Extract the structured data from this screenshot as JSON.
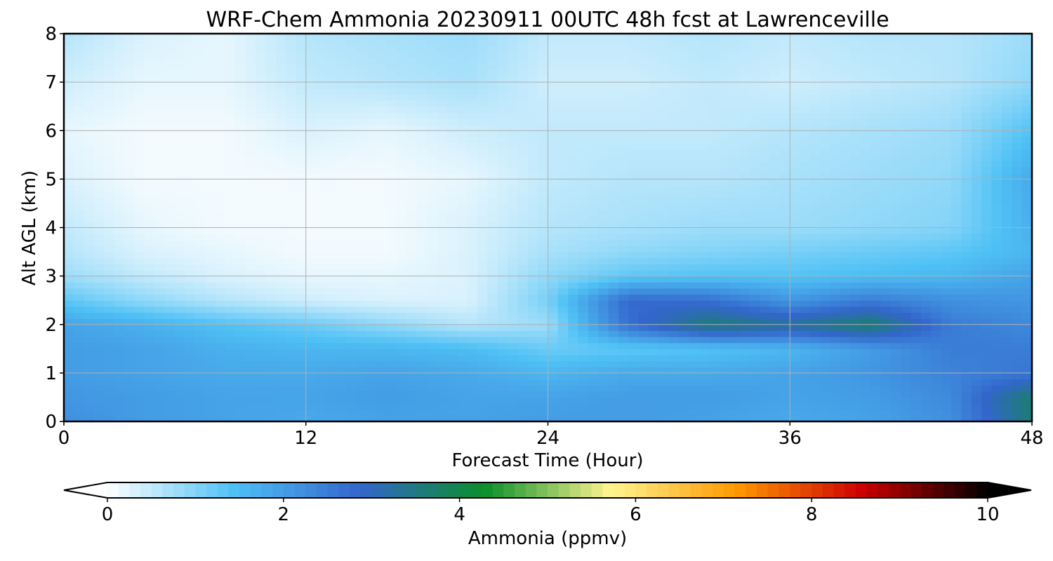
{
  "chart_data": {
    "type": "heatmap",
    "title": "WRF-Chem Ammonia  20230911 00UTC 48h fcst at Lawrenceville",
    "xlabel": "Forecast Time (Hour)",
    "ylabel": "Alt AGL (km)",
    "xlim": [
      0,
      48
    ],
    "ylim": [
      0,
      8
    ],
    "x_ticks": [
      "0",
      "12",
      "24",
      "36",
      "48"
    ],
    "y_ticks": [
      "0",
      "1",
      "2",
      "3",
      "4",
      "5",
      "6",
      "7",
      "8"
    ],
    "grid": true,
    "x": [
      0,
      4,
      8,
      12,
      16,
      20,
      24,
      28,
      32,
      36,
      40,
      44,
      48
    ],
    "y": [
      0,
      0.5,
      1,
      1.5,
      2,
      2.5,
      3,
      3.5,
      4,
      5,
      6,
      7,
      8
    ],
    "z": [
      [
        2.2,
        2.0,
        1.9,
        1.8,
        1.9,
        1.9,
        2.0,
        2.0,
        1.9,
        1.8,
        1.9,
        2.2,
        3.6
      ],
      [
        2.1,
        2.0,
        1.9,
        1.9,
        2.0,
        1.9,
        1.9,
        2.0,
        2.0,
        1.9,
        2.0,
        2.3,
        3.7
      ],
      [
        2.0,
        1.9,
        1.8,
        1.8,
        1.9,
        1.8,
        1.6,
        1.8,
        1.8,
        1.9,
        2.1,
        2.4,
        2.6
      ],
      [
        2.0,
        1.9,
        1.7,
        1.6,
        1.6,
        1.5,
        1.2,
        1.3,
        1.4,
        1.6,
        2.0,
        2.5,
        2.5
      ],
      [
        1.9,
        1.7,
        1.4,
        1.2,
        0.9,
        0.6,
        0.8,
        2.7,
        3.6,
        3.3,
        3.7,
        2.5,
        2.3
      ],
      [
        1.3,
        0.9,
        0.6,
        0.4,
        0.3,
        0.3,
        1.1,
        2.8,
        2.7,
        2.1,
        2.5,
        2.2,
        2.1
      ],
      [
        0.8,
        0.5,
        0.3,
        0.2,
        0.2,
        0.3,
        0.9,
        1.3,
        1.4,
        1.4,
        1.5,
        1.6,
        1.9
      ],
      [
        0.6,
        0.3,
        0.2,
        0.1,
        0.1,
        0.3,
        0.7,
        0.9,
        1.0,
        1.1,
        1.2,
        1.3,
        1.6
      ],
      [
        0.5,
        0.2,
        0.1,
        0.1,
        0.1,
        0.3,
        0.6,
        0.7,
        0.8,
        0.8,
        0.9,
        1.0,
        1.7
      ],
      [
        0.3,
        0.1,
        0.1,
        0.1,
        0.1,
        0.2,
        0.5,
        0.6,
        0.6,
        0.7,
        0.8,
        0.9,
        1.8
      ],
      [
        0.2,
        0.1,
        0.1,
        0.3,
        0.2,
        0.4,
        0.5,
        0.5,
        0.5,
        0.6,
        0.7,
        0.8,
        1.4
      ],
      [
        0.4,
        0.2,
        0.2,
        0.5,
        0.6,
        0.7,
        0.4,
        0.4,
        0.5,
        0.4,
        0.5,
        0.6,
        0.9
      ],
      [
        0.6,
        0.3,
        0.2,
        0.6,
        0.7,
        0.8,
        0.5,
        0.5,
        0.6,
        0.5,
        0.6,
        0.6,
        0.8
      ]
    ],
    "colorbar": {
      "label": "Ammonia  (ppmv)",
      "min": 0,
      "max": 10,
      "ticks": [
        "0",
        "2",
        "4",
        "6",
        "8",
        "10"
      ],
      "extend": "both",
      "colors": [
        "#ffffff",
        "#4fc1f5",
        "#3366cc",
        "#0a8f2a",
        "#fff590",
        "#ff9900",
        "#cc0000",
        "#000000"
      ]
    }
  }
}
